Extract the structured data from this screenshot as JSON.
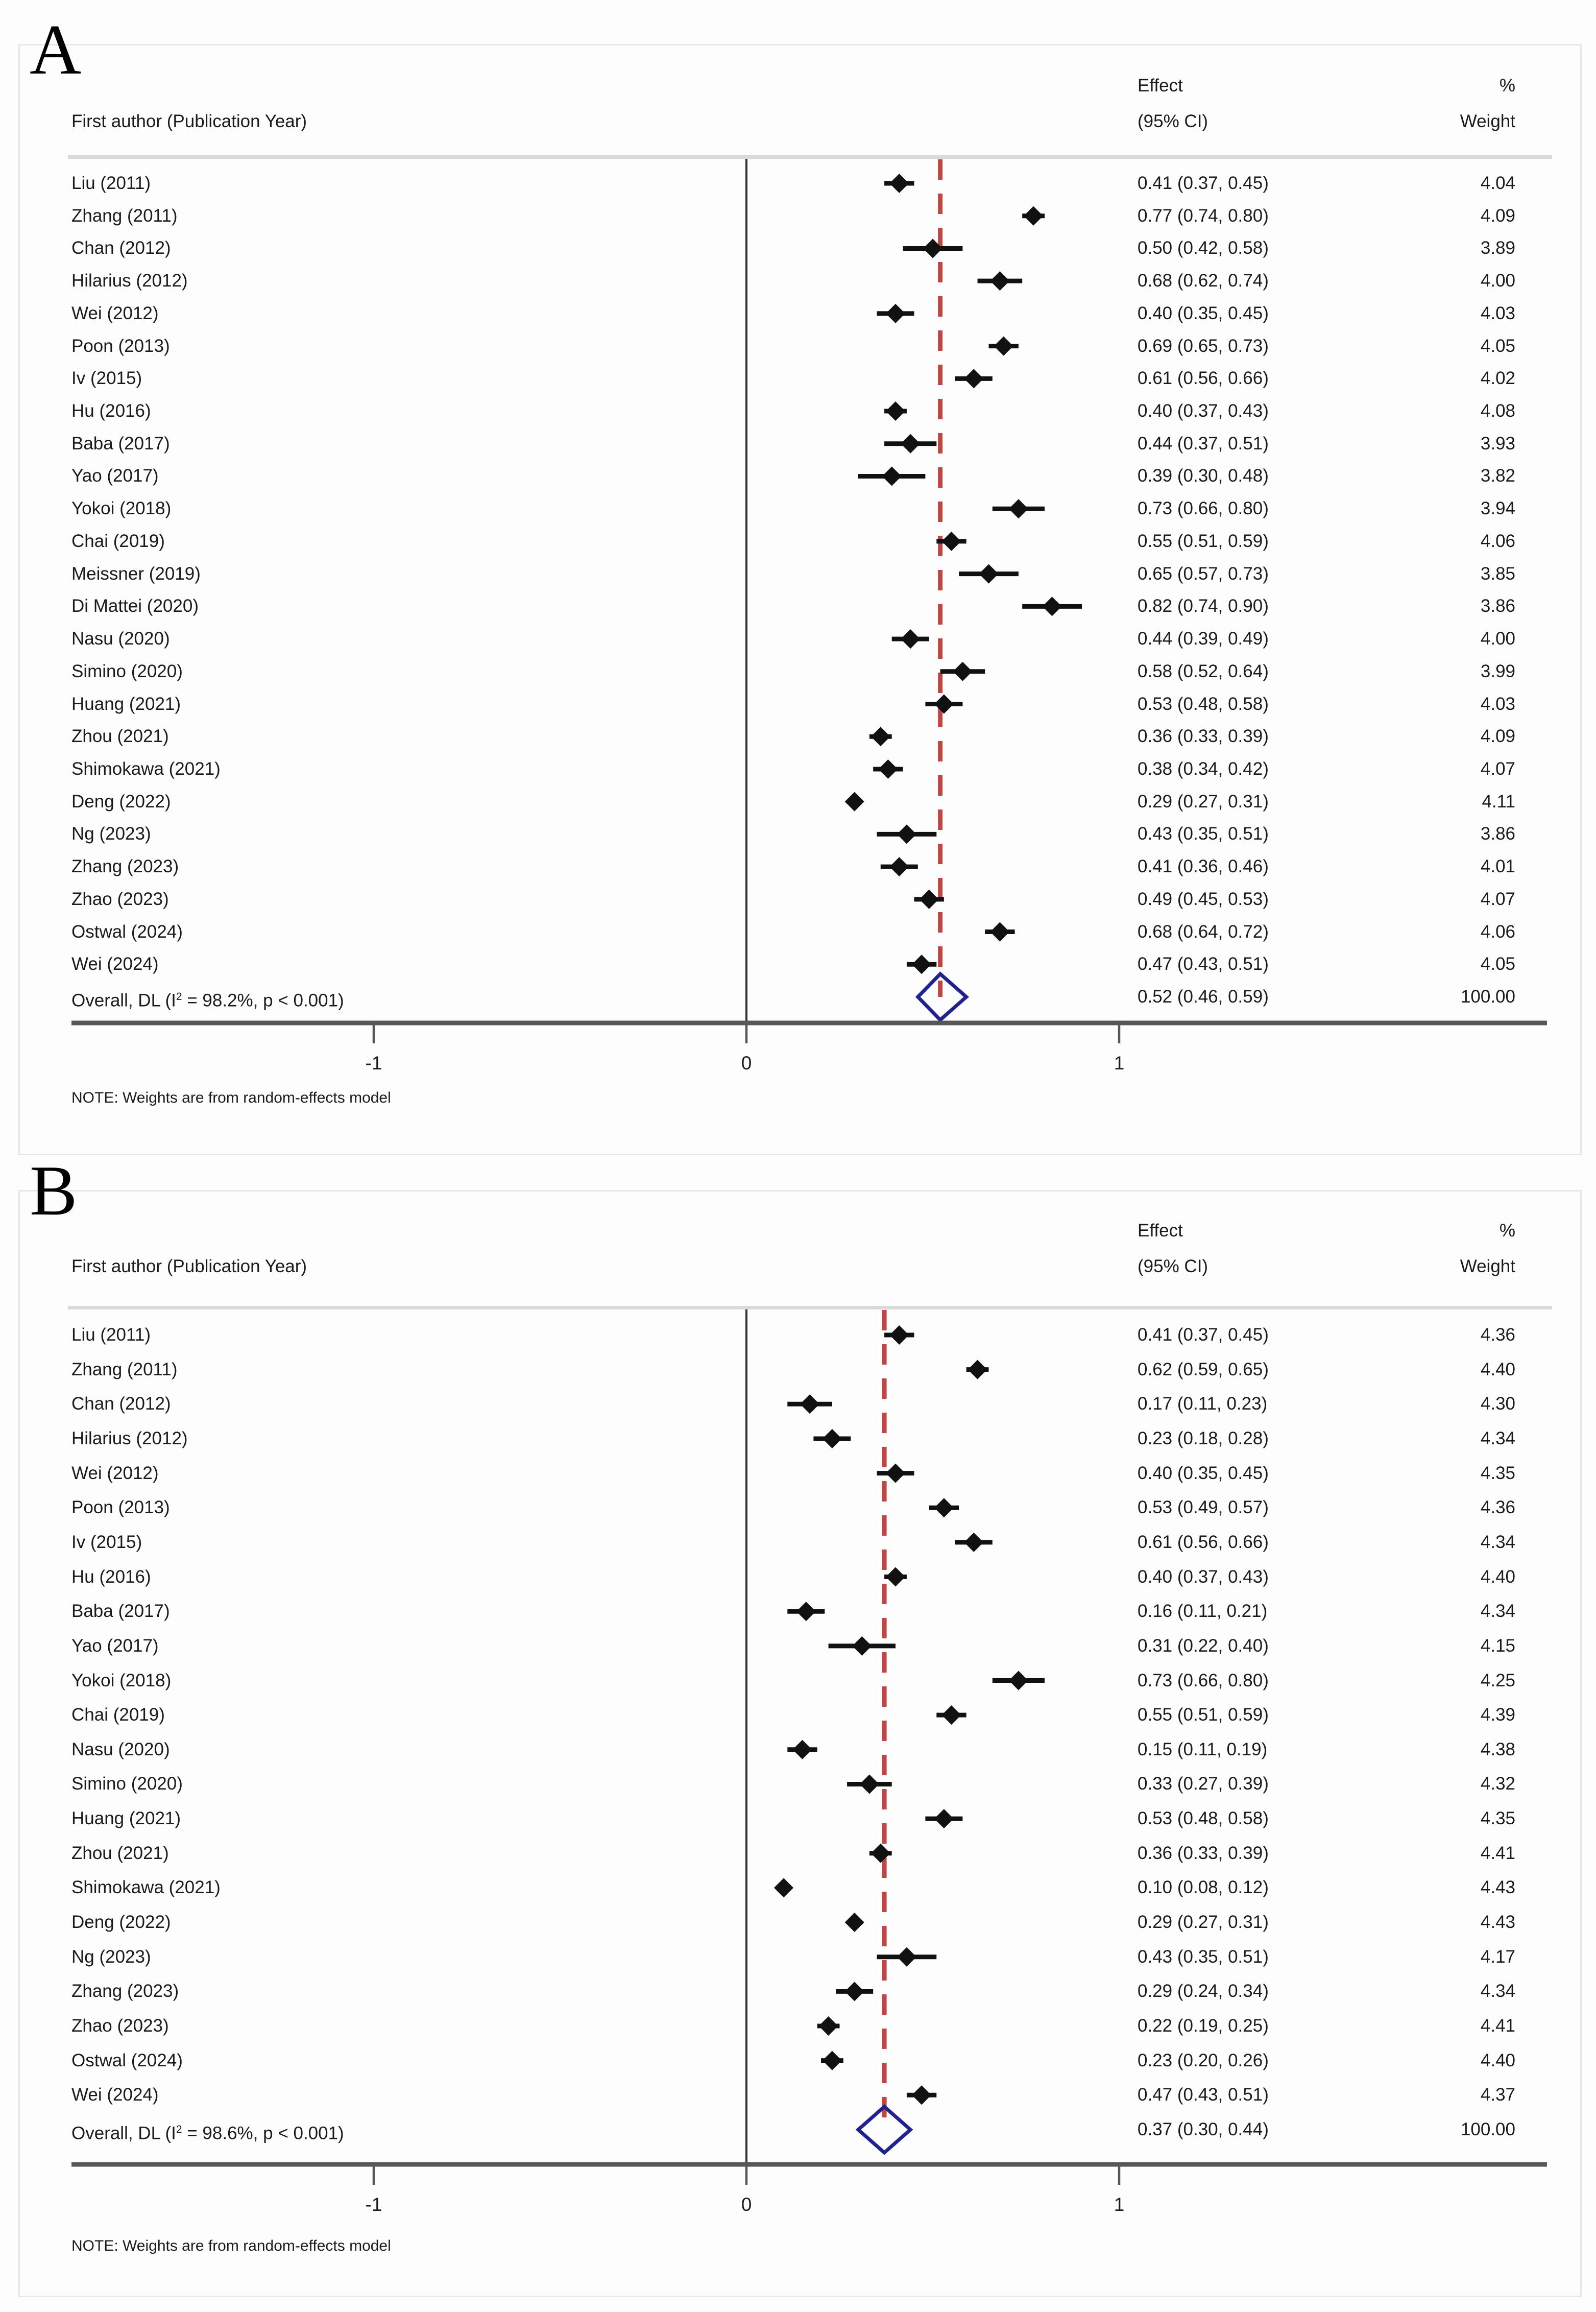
{
  "figure": {
    "col_header_left": "First author (Publication Year)",
    "col_header_effect_line1": "Effect",
    "col_header_effect_line2": "(95% CI)",
    "col_header_weight_line1": "%",
    "col_header_weight_line2": "Weight",
    "note": "NOTE: Weights are from random-effects model"
  },
  "colors": {
    "marker": "#111111",
    "ci_line": "#111111",
    "zero_line": "#303030",
    "dashed_line": "#c04545",
    "overall_diamond": "#22228e",
    "axis": "#57575a",
    "header_rule": "#d9d9d9",
    "panel_border": "#e4e8ee",
    "text": "#1b1b1b"
  },
  "chart_data": [
    {
      "type": "forest",
      "panel": "A",
      "title": "A",
      "xlabel": "",
      "axis_ticks": [
        -1,
        0,
        1
      ],
      "xlim": [
        -1.81,
        2.15
      ],
      "overall": {
        "label_pre": "Overall, DL (I",
        "label_sup": "2",
        "label_post": " = 98.2%, p < 0.001)",
        "effect": 0.52,
        "lo": 0.46,
        "hi": 0.59,
        "weight": 100.0
      },
      "studies": [
        {
          "label": "Liu (2011)",
          "effect": 0.41,
          "lo": 0.37,
          "hi": 0.45,
          "weight": 4.04
        },
        {
          "label": "Zhang (2011)",
          "effect": 0.77,
          "lo": 0.74,
          "hi": 0.8,
          "weight": 4.09
        },
        {
          "label": "Chan (2012)",
          "effect": 0.5,
          "lo": 0.42,
          "hi": 0.58,
          "weight": 3.89
        },
        {
          "label": "Hilarius (2012)",
          "effect": 0.68,
          "lo": 0.62,
          "hi": 0.74,
          "weight": 4.0
        },
        {
          "label": "Wei (2012)",
          "effect": 0.4,
          "lo": 0.35,
          "hi": 0.45,
          "weight": 4.03
        },
        {
          "label": "Poon (2013)",
          "effect": 0.69,
          "lo": 0.65,
          "hi": 0.73,
          "weight": 4.05
        },
        {
          "label": "Iv (2015)",
          "effect": 0.61,
          "lo": 0.56,
          "hi": 0.66,
          "weight": 4.02
        },
        {
          "label": "Hu (2016)",
          "effect": 0.4,
          "lo": 0.37,
          "hi": 0.43,
          "weight": 4.08
        },
        {
          "label": "Baba (2017)",
          "effect": 0.44,
          "lo": 0.37,
          "hi": 0.51,
          "weight": 3.93
        },
        {
          "label": "Yao (2017)",
          "effect": 0.39,
          "lo": 0.3,
          "hi": 0.48,
          "weight": 3.82
        },
        {
          "label": "Yokoi (2018)",
          "effect": 0.73,
          "lo": 0.66,
          "hi": 0.8,
          "weight": 3.94
        },
        {
          "label": "Chai (2019)",
          "effect": 0.55,
          "lo": 0.51,
          "hi": 0.59,
          "weight": 4.06
        },
        {
          "label": "Meissner (2019)",
          "effect": 0.65,
          "lo": 0.57,
          "hi": 0.73,
          "weight": 3.85
        },
        {
          "label": "Di Mattei (2020)",
          "effect": 0.82,
          "lo": 0.74,
          "hi": 0.9,
          "weight": 3.86
        },
        {
          "label": "Nasu (2020)",
          "effect": 0.44,
          "lo": 0.39,
          "hi": 0.49,
          "weight": 4.0
        },
        {
          "label": "Simino (2020)",
          "effect": 0.58,
          "lo": 0.52,
          "hi": 0.64,
          "weight": 3.99
        },
        {
          "label": "Huang (2021)",
          "effect": 0.53,
          "lo": 0.48,
          "hi": 0.58,
          "weight": 4.03
        },
        {
          "label": "Zhou (2021)",
          "effect": 0.36,
          "lo": 0.33,
          "hi": 0.39,
          "weight": 4.09
        },
        {
          "label": "Shimokawa (2021)",
          "effect": 0.38,
          "lo": 0.34,
          "hi": 0.42,
          "weight": 4.07
        },
        {
          "label": "Deng (2022)",
          "effect": 0.29,
          "lo": 0.27,
          "hi": 0.31,
          "weight": 4.11
        },
        {
          "label": "Ng (2023)",
          "effect": 0.43,
          "lo": 0.35,
          "hi": 0.51,
          "weight": 3.86
        },
        {
          "label": "Zhang (2023)",
          "effect": 0.41,
          "lo": 0.36,
          "hi": 0.46,
          "weight": 4.01
        },
        {
          "label": "Zhao (2023)",
          "effect": 0.49,
          "lo": 0.45,
          "hi": 0.53,
          "weight": 4.07
        },
        {
          "label": "Ostwal (2024)",
          "effect": 0.68,
          "lo": 0.64,
          "hi": 0.72,
          "weight": 4.06
        },
        {
          "label": "Wei (2024)",
          "effect": 0.47,
          "lo": 0.43,
          "hi": 0.51,
          "weight": 4.05
        }
      ]
    },
    {
      "type": "forest",
      "panel": "B",
      "title": "B",
      "xlabel": "",
      "axis_ticks": [
        -1,
        0,
        1
      ],
      "xlim": [
        -1.81,
        2.15
      ],
      "overall": {
        "label_pre": "Overall, DL (I",
        "label_sup": "2",
        "label_post": " = 98.6%, p < 0.001)",
        "effect": 0.37,
        "lo": 0.3,
        "hi": 0.44,
        "weight": 100.0
      },
      "studies": [
        {
          "label": "Liu (2011)",
          "effect": 0.41,
          "lo": 0.37,
          "hi": 0.45,
          "weight": 4.36
        },
        {
          "label": "Zhang (2011)",
          "effect": 0.62,
          "lo": 0.59,
          "hi": 0.65,
          "weight": 4.4
        },
        {
          "label": "Chan (2012)",
          "effect": 0.17,
          "lo": 0.11,
          "hi": 0.23,
          "weight": 4.3
        },
        {
          "label": "Hilarius (2012)",
          "effect": 0.23,
          "lo": 0.18,
          "hi": 0.28,
          "weight": 4.34
        },
        {
          "label": "Wei (2012)",
          "effect": 0.4,
          "lo": 0.35,
          "hi": 0.45,
          "weight": 4.35
        },
        {
          "label": "Poon (2013)",
          "effect": 0.53,
          "lo": 0.49,
          "hi": 0.57,
          "weight": 4.36
        },
        {
          "label": "Iv (2015)",
          "effect": 0.61,
          "lo": 0.56,
          "hi": 0.66,
          "weight": 4.34
        },
        {
          "label": "Hu (2016)",
          "effect": 0.4,
          "lo": 0.37,
          "hi": 0.43,
          "weight": 4.4
        },
        {
          "label": "Baba (2017)",
          "effect": 0.16,
          "lo": 0.11,
          "hi": 0.21,
          "weight": 4.34
        },
        {
          "label": "Yao (2017)",
          "effect": 0.31,
          "lo": 0.22,
          "hi": 0.4,
          "weight": 4.15
        },
        {
          "label": "Yokoi (2018)",
          "effect": 0.73,
          "lo": 0.66,
          "hi": 0.8,
          "weight": 4.25
        },
        {
          "label": "Chai (2019)",
          "effect": 0.55,
          "lo": 0.51,
          "hi": 0.59,
          "weight": 4.39
        },
        {
          "label": "Nasu (2020)",
          "effect": 0.15,
          "lo": 0.11,
          "hi": 0.19,
          "weight": 4.38
        },
        {
          "label": "Simino (2020)",
          "effect": 0.33,
          "lo": 0.27,
          "hi": 0.39,
          "weight": 4.32
        },
        {
          "label": "Huang (2021)",
          "effect": 0.53,
          "lo": 0.48,
          "hi": 0.58,
          "weight": 4.35
        },
        {
          "label": "Zhou (2021)",
          "effect": 0.36,
          "lo": 0.33,
          "hi": 0.39,
          "weight": 4.41
        },
        {
          "label": "Shimokawa (2021)",
          "effect": 0.1,
          "lo": 0.08,
          "hi": 0.12,
          "weight": 4.43
        },
        {
          "label": "Deng (2022)",
          "effect": 0.29,
          "lo": 0.27,
          "hi": 0.31,
          "weight": 4.43
        },
        {
          "label": "Ng (2023)",
          "effect": 0.43,
          "lo": 0.35,
          "hi": 0.51,
          "weight": 4.17
        },
        {
          "label": "Zhang (2023)",
          "effect": 0.29,
          "lo": 0.24,
          "hi": 0.34,
          "weight": 4.34
        },
        {
          "label": "Zhao (2023)",
          "effect": 0.22,
          "lo": 0.19,
          "hi": 0.25,
          "weight": 4.41
        },
        {
          "label": "Ostwal (2024)",
          "effect": 0.23,
          "lo": 0.2,
          "hi": 0.26,
          "weight": 4.4
        },
        {
          "label": "Wei (2024)",
          "effect": 0.47,
          "lo": 0.43,
          "hi": 0.51,
          "weight": 4.37
        }
      ]
    }
  ]
}
